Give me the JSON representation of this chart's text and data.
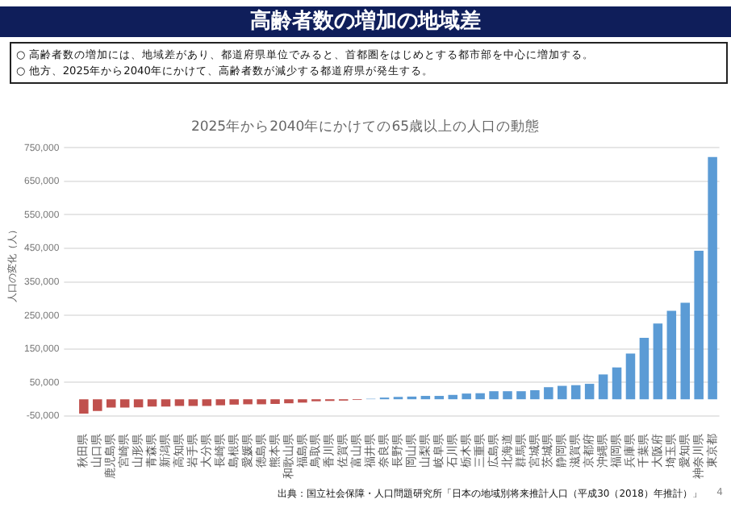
{
  "chart_data": {
    "type": "bar",
    "title": "高齢者数の増加の地域差",
    "subtitle": "2025年から2040年にかけての65歳以上の人口の動態",
    "ylabel": "人口の変化（人）",
    "categories": [
      "秋田県",
      "山口県",
      "鹿児島県",
      "宮崎県",
      "山形県",
      "青森県",
      "新潟県",
      "高知県",
      "岩手県",
      "大分県",
      "長崎県",
      "島根県",
      "愛媛県",
      "徳島県",
      "熊本県",
      "和歌山県",
      "福島県",
      "鳥取県",
      "香川県",
      "佐賀県",
      "富山県",
      "福井県",
      "奈良県",
      "長野県",
      "岡山県",
      "山梨県",
      "岐阜県",
      "石川県",
      "栃木県",
      "三重県",
      "広島県",
      "北海道",
      "群馬県",
      "宮城県",
      "茨城県",
      "静岡県",
      "滋賀県",
      "京都府",
      "沖縄県",
      "福岡県",
      "兵庫県",
      "千葉県",
      "大阪府",
      "埼玉県",
      "愛知県",
      "神奈川県",
      "東京都"
    ],
    "values": [
      -43000,
      -35000,
      -25000,
      -25000,
      -24000,
      -22000,
      -22000,
      -20000,
      -20000,
      -20000,
      -18000,
      -16000,
      -15000,
      -15000,
      -14000,
      -12000,
      -10000,
      -6000,
      -5000,
      -4000,
      -2000,
      2000,
      5000,
      7000,
      8000,
      10000,
      10000,
      13000,
      17000,
      18000,
      24000,
      24000,
      24000,
      27000,
      36000,
      40000,
      42000,
      46000,
      74000,
      95000,
      136000,
      183000,
      226000,
      264000,
      288000,
      443000,
      722000
    ],
    "colors": [
      "#c0504d",
      "#c0504d",
      "#c0504d",
      "#c0504d",
      "#c0504d",
      "#c0504d",
      "#c0504d",
      "#c0504d",
      "#c0504d",
      "#c0504d",
      "#c0504d",
      "#c0504d",
      "#c0504d",
      "#c0504d",
      "#c0504d",
      "#c0504d",
      "#c0504d",
      "#c0504d",
      "#c0504d",
      "#c0504d",
      "#c0504d",
      "#9dc3e6",
      "#5b9bd5",
      "#5b9bd5",
      "#5b9bd5",
      "#5b9bd5",
      "#5b9bd5",
      "#5b9bd5",
      "#5b9bd5",
      "#5b9bd5",
      "#5b9bd5",
      "#5b9bd5",
      "#5b9bd5",
      "#5b9bd5",
      "#5b9bd5",
      "#5b9bd5",
      "#5b9bd5",
      "#5b9bd5",
      "#5b9bd5",
      "#5b9bd5",
      "#5b9bd5",
      "#5b9bd5",
      "#5b9bd5",
      "#5b9bd5",
      "#5b9bd5",
      "#5b9bd5",
      "#5b9bd5"
    ],
    "ylim": [
      -50000,
      750000
    ],
    "yticks": [
      {
        "value": -50000,
        "label": "-50,000"
      },
      {
        "value": 50000,
        "label": "50,000"
      },
      {
        "value": 150000,
        "label": "150,000"
      },
      {
        "value": 250000,
        "label": "250,000"
      },
      {
        "value": 350000,
        "label": "350,000"
      },
      {
        "value": 450000,
        "label": "450,000"
      },
      {
        "value": 550000,
        "label": "550,000"
      },
      {
        "value": 650000,
        "label": "650,000"
      },
      {
        "value": 750000,
        "label": "750,000"
      }
    ],
    "grid": "y",
    "annotations": [
      "○ 高齢者数の増加には、地域差があり、都道府県単位でみると、首都圏をはじめとする都市部を中心に増加する。",
      "○ 他方、2025年から2040年にかけて、高齢者数が減少する都道府県が発生する。",
      "出典：国立社会保障・人口問題研究所「日本の地域別将来推計人口（平成30（2018）年推計）」",
      "4"
    ]
  }
}
